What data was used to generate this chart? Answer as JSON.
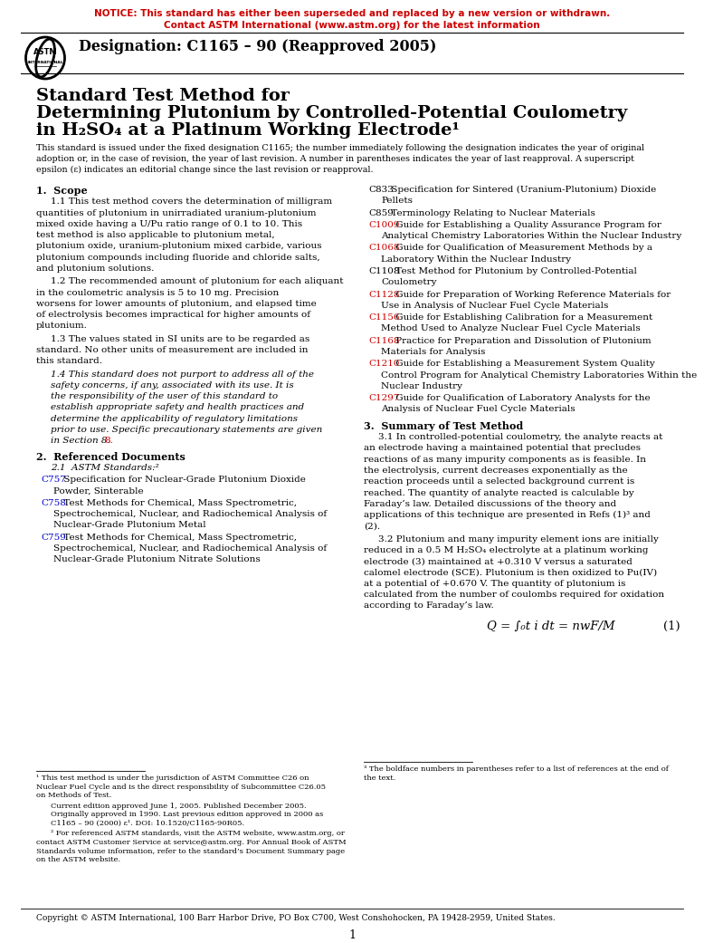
{
  "notice_line1": "NOTICE: This standard has either been superseded and replaced by a new version or withdrawn.",
  "notice_line2": "Contact ASTM International (www.astm.org) for the latest information",
  "notice_color": "#CC0000",
  "designation": "Designation: C1165 – 90 (Reapproved 2005)",
  "title_line1": "Standard Test Method for",
  "title_line2": "Determining Plutonium by Controlled-Potential Coulometry",
  "title_line3": "in H₂SO₄ at a Platinum Working Electrode¹",
  "abstract": "This standard is issued under the fixed designation C1165; the number immediately following the designation indicates the year of original adoption or, in the case of revision, the year of last revision. A number in parentheses indicates the year of last reapproval. A superscript epsilon (ε) indicates an editorial change since the last revision or reapproval.",
  "section1_head": "1.  Scope",
  "s1p1": "1.1  This test method covers the determination of milligram quantities of plutonium in unirradiated uranium-plutonium mixed oxide having a U/Pu ratio range of 0.1 to 10. This test method is also applicable to plutonium metal, plutonium oxide, uranium-plutonium mixed carbide, various plutonium compounds including fluoride and chloride salts, and plutonium solutions.",
  "s1p2": "1.2  The recommended amount of plutonium for each aliquant in the coulometric analysis is 5 to 10 mg. Precision worsens for lower amounts of plutonium, and elapsed time of electrolysis becomes impractical for higher amounts of plutonium.",
  "s1p3": "1.3  The values stated in SI units are to be regarded as standard. No other units of measurement are included in this standard.",
  "s1p4_italic": "1.4  This standard does not purport to address all of the safety concerns, if any, associated with its use. It is the responsibility of the user of this standard to establish appropriate safety and health practices and determine the applicability of regulatory limitations prior to use.",
  "s1p4_normal": " Specific precautionary statements are given in Section ",
  "s1p4_ref": "8",
  "section2_head": "2.  Referenced Documents",
  "s2_sub": "2.1  ASTM Standards:²",
  "refs_left": [
    {
      "code": "C757",
      "color": "#0000CC",
      "text": " Specification for Nuclear-Grade Plutonium Dioxide Powder, Sinterable"
    },
    {
      "code": "C758",
      "color": "#0000CC",
      "text": " Test Methods for Chemical, Mass Spectrometric, Spectrochemical, Nuclear, and Radiochemical Analysis of Nuclear-Grade Plutonium Metal"
    },
    {
      "code": "C759",
      "color": "#0000CC",
      "text": " Test Methods for Chemical, Mass Spectrometric, Spectrochemical, Nuclear, and Radiochemical Analysis of Nuclear-Grade Plutonium Nitrate Solutions"
    }
  ],
  "refs_right": [
    {
      "code": "C833",
      "color": "#000000",
      "text": " Specification for Sintered (Uranium-Plutonium) Dioxide Pellets",
      "code_color": "#000000"
    },
    {
      "code": "C859",
      "color": "#000000",
      "text": " Terminology Relating to Nuclear Materials",
      "code_color": "#000000"
    },
    {
      "code": "C1009",
      "color": "#CC0000",
      "text": " Guide for Establishing a Quality Assurance Program for Analytical Chemistry Laboratories Within the Nuclear Industry",
      "code_color": "#CC0000"
    },
    {
      "code": "C1068",
      "color": "#CC0000",
      "text": " Guide for Qualification of Measurement Methods by a Laboratory Within the Nuclear Industry",
      "code_color": "#CC0000"
    },
    {
      "code": "C1108",
      "color": "#000000",
      "text": " Test Method for Plutonium by Controlled-Potential Coulometry",
      "code_color": "#000000"
    },
    {
      "code": "C1128",
      "color": "#CC0000",
      "text": " Guide for Preparation of Working Reference Materials for Use in Analysis of Nuclear Fuel Cycle Materials",
      "code_color": "#CC0000"
    },
    {
      "code": "C1156",
      "color": "#CC0000",
      "text": " Guide for Establishing Calibration for a Measurement Method Used to Analyze Nuclear Fuel Cycle Materials",
      "code_color": "#CC0000"
    },
    {
      "code": "C1168",
      "color": "#CC0000",
      "text": " Practice for Preparation and Dissolution of Plutonium Materials for Analysis",
      "code_color": "#CC0000"
    },
    {
      "code": "C1210",
      "color": "#CC0000",
      "text": " Guide for Establishing a Measurement System Quality Control Program for Analytical Chemistry Laboratories Within the Nuclear Industry",
      "code_color": "#CC0000"
    },
    {
      "code": "C1297",
      "color": "#CC0000",
      "text": " Guide for Qualification of Laboratory Analysts for the Analysis of Nuclear Fuel Cycle Materials",
      "code_color": "#CC0000"
    }
  ],
  "section3_head": "3.  Summary of Test Method",
  "s3p1": "3.1  In controlled-potential coulometry, the analyte reacts at an electrode having a maintained potential that precludes reactions of as many impurity components as is feasible. In the electrolysis, current decreases exponentially as the reaction proceeds until a selected background current is reached. The quantity of analyte reacted is calculable by Faraday’s law. Detailed discussions of the theory and applications of this technique are presented in Refs (1)³ and (2).",
  "s3p2": "3.2  Plutonium and many impurity element ions are initially reduced in a 0.5 M H₂SO₄ electrolyte at a platinum working electrode (3) maintained at +0.310 V versus a saturated calomel electrode (SCE). Plutonium is then oxidized to Pu(IV) at a potential of +0.670 V. The quantity of plutonium is calculated from the number of coulombs required for oxidation according to Faraday’s law.",
  "equation": "Q = ∫₀t i dt = nwF/M",
  "eq_number": "(1)",
  "footnote1": "¹ This test method is under the jurisdiction of ASTM Committee C26 on Nuclear Fuel Cycle and is the direct responsibility of Subcommittee C26.05 on Methods of Test.",
  "footnote_edition": "Current edition approved June 1, 2005. Published December 2005. Originally approved in 1990. Last previous edition approved in 2000 as C1165 – 90 (2000) ε¹. DOI: 10.1520/C1165-90R05.",
  "footnote2": "² For referenced ASTM standards, visit the ASTM website, www.astm.org, or contact ASTM Customer Service at service@astm.org. For Annual Book of ASTM Standards volume information, refer to the standard’s Document Summary page on the ASTM website.",
  "footnote3": "³ The boldface numbers in parentheses refer to a list of references at the end of the text.",
  "copyright": "Copyright © ASTM International, 100 Barr Harbor Drive, PO Box C700, West Conshohocken, PA 19428-2959, United States.",
  "page_num": "1",
  "bg_color": "#FFFFFF",
  "text_color": "#000000",
  "link_color": "#CC0000",
  "blue_color": "#0000CC"
}
